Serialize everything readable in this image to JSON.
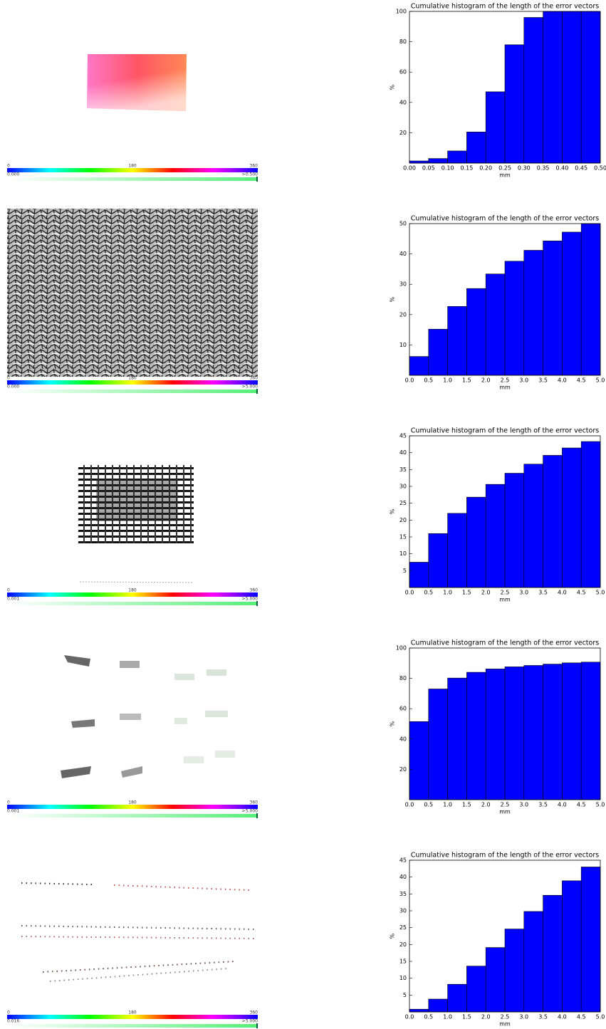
{
  "panels": [
    {
      "hue_scale": [
        "0",
        "180",
        "360"
      ],
      "magnitude_scale": [
        "0.000",
        ">",
        "0.500"
      ]
    },
    {
      "hue_scale": [
        "0",
        "180",
        "360"
      ],
      "magnitude_scale": [
        "0.000",
        ">",
        "5.000"
      ]
    },
    {
      "hue_scale": [
        "0",
        "180",
        "360"
      ],
      "magnitude_scale": [
        "0.001",
        ">",
        "5.000"
      ]
    },
    {
      "hue_scale": [
        "0",
        "180",
        "360"
      ],
      "magnitude_scale": [
        "0.001",
        ">",
        "5.000"
      ]
    },
    {
      "hue_scale": [
        "0",
        "180",
        "360"
      ],
      "magnitude_scale": [
        "0.016",
        ">",
        "5.000"
      ]
    }
  ],
  "chart_data": [
    {
      "type": "histogram",
      "title": "Cumulative histogram of the length of the error vectors",
      "x_label": "mm",
      "y_label": "%",
      "color": "#0000ff",
      "bins": [
        0,
        0.05,
        0.1,
        0.15,
        0.2,
        0.25,
        0.3,
        0.35,
        0.4,
        0.45,
        0.5
      ],
      "values": [
        1.4,
        3,
        8,
        20.5,
        47,
        78,
        96,
        100,
        100,
        100
      ],
      "xlim": [
        0,
        0.5
      ],
      "ylim": [
        0,
        100
      ],
      "xticks": [
        {
          "value": 0,
          "label": "0.00"
        },
        {
          "value": 0.05,
          "label": "0.05"
        },
        {
          "value": 0.1,
          "label": "0.10"
        },
        {
          "value": 0.15,
          "label": "0.15"
        },
        {
          "value": 0.2,
          "label": "0.20"
        },
        {
          "value": 0.25,
          "label": "0.25"
        },
        {
          "value": 0.3,
          "label": "0.30"
        },
        {
          "value": 0.35,
          "label": "0.35"
        },
        {
          "value": 0.4,
          "label": "0.40"
        },
        {
          "value": 0.45,
          "label": "0.45"
        },
        {
          "value": 0.5,
          "label": "0.50"
        }
      ],
      "yticks": [
        20,
        40,
        60,
        80,
        100
      ]
    },
    {
      "type": "histogram",
      "title": "Cumulative histogram of the length of the error vectors",
      "x_label": "mm",
      "y_label": "%",
      "color": "#0000ff",
      "bins": [
        0,
        0.5,
        1,
        1.5,
        2,
        2.5,
        3,
        3.5,
        4,
        4.5,
        5
      ],
      "values": [
        6.2,
        15.2,
        22.7,
        28.6,
        33.4,
        37.6,
        41.2,
        44.3,
        47.2,
        50
      ],
      "xlim": [
        0,
        5
      ],
      "ylim": [
        0,
        50
      ],
      "xticks": [
        {
          "value": 0,
          "label": "0.0"
        },
        0.5,
        {
          "value": 1,
          "label": "1.0"
        },
        1.5,
        {
          "value": 2,
          "label": "2.0"
        },
        2.5,
        {
          "value": 3,
          "label": "3.0"
        },
        3.5,
        {
          "value": 4,
          "label": "4.0"
        },
        4.5,
        {
          "value": 5,
          "label": "5.0"
        }
      ],
      "yticks": [
        10,
        20,
        30,
        40,
        50
      ]
    },
    {
      "type": "histogram",
      "title": "Cumulative histogram of the length of the error vectors",
      "x_label": "mm",
      "y_label": "%",
      "color": "#0000ff",
      "bins": [
        0,
        0.5,
        1,
        1.5,
        2,
        2.5,
        3,
        3.5,
        4,
        4.5,
        5
      ],
      "values": [
        7.5,
        16,
        22,
        26.8,
        30.6,
        33.9,
        36.6,
        39.2,
        41.4,
        43.3
      ],
      "xlim": [
        0,
        5
      ],
      "ylim": [
        0,
        45
      ],
      "xticks": [
        {
          "value": 0,
          "label": "0.0"
        },
        0.5,
        {
          "value": 1,
          "label": "1.0"
        },
        1.5,
        {
          "value": 2,
          "label": "2.0"
        },
        2.5,
        {
          "value": 3,
          "label": "3.0"
        },
        3.5,
        {
          "value": 4,
          "label": "4.0"
        },
        4.5,
        {
          "value": 5,
          "label": "5.0"
        }
      ],
      "yticks": [
        5,
        10,
        15,
        20,
        25,
        30,
        35,
        40,
        45
      ]
    },
    {
      "type": "histogram",
      "title": "Cumulative histogram of the length of the error vectors",
      "x_label": "mm",
      "y_label": "%",
      "color": "#0000ff",
      "bins": [
        0,
        0.5,
        1,
        1.5,
        2,
        2.5,
        3,
        3.5,
        4,
        4.5,
        5
      ],
      "values": [
        51.5,
        73,
        80.2,
        84,
        86.2,
        87.6,
        88.5,
        89.4,
        90.2,
        90.7
      ],
      "xlim": [
        0,
        5
      ],
      "ylim": [
        0,
        100
      ],
      "xticks": [
        {
          "value": 0,
          "label": "0.0"
        },
        0.5,
        {
          "value": 1,
          "label": "1.0"
        },
        1.5,
        {
          "value": 2,
          "label": "2.0"
        },
        2.5,
        {
          "value": 3,
          "label": "3.0"
        },
        3.5,
        {
          "value": 4,
          "label": "4.0"
        },
        4.5,
        {
          "value": 5,
          "label": "5.0"
        }
      ],
      "yticks": [
        20,
        40,
        60,
        80,
        100
      ]
    },
    {
      "type": "histogram",
      "title": "Cumulative histogram of the length of the error vectors",
      "x_label": "mm",
      "y_label": "%",
      "color": "#0000ff",
      "bins": [
        0,
        0.5,
        1,
        1.5,
        2,
        2.5,
        3,
        3.5,
        4,
        4.5,
        5
      ],
      "values": [
        0.8,
        3.8,
        8.2,
        13.6,
        19.1,
        24.6,
        29.8,
        34.6,
        38.9,
        43
      ],
      "xlim": [
        0,
        5
      ],
      "ylim": [
        0,
        45
      ],
      "xticks": [
        {
          "value": 0,
          "label": "0.0"
        },
        0.5,
        {
          "value": 1,
          "label": "1.0"
        },
        1.5,
        {
          "value": 2,
          "label": "2.0"
        },
        2.5,
        {
          "value": 3,
          "label": "3.0"
        },
        3.5,
        {
          "value": 4,
          "label": "4.0"
        },
        4.5,
        {
          "value": 5,
          "label": "5.0"
        }
      ],
      "yticks": [
        5,
        10,
        15,
        20,
        25,
        30,
        35,
        40,
        45
      ]
    }
  ]
}
